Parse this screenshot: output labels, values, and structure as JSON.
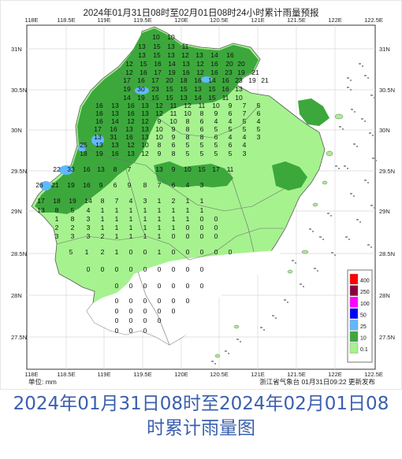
{
  "map": {
    "title": "2024年01月31日08时至02月01日08时24小时累计雨量预报",
    "unit_label": "单位:  mm",
    "issuer": "浙江省气象台  01月31日09:22  更新发布",
    "lon_ticks": [
      "118E",
      "118.5E",
      "119E",
      "119.5E",
      "120E",
      "120.5E",
      "121E",
      "121.5E",
      "122E",
      "122.5E"
    ],
    "lat_ticks": [
      "31N",
      "30.5N",
      "30N",
      "29.5N",
      "29N",
      "28.5N",
      "28N",
      "27.5N"
    ],
    "legend": {
      "levels": [
        "400",
        "250",
        "100",
        "50",
        "25",
        "10",
        "0.1"
      ],
      "colors": [
        "#ff0000",
        "#8b0040",
        "#ff00ff",
        "#0000ff",
        "#61b8ff",
        "#3ca83c",
        "#a6f28f"
      ]
    },
    "rain_colors": {
      "light": "#a6f28f",
      "moderate": "#3ca83c",
      "heavy": "#61b8ff",
      "none": "#ffffff"
    },
    "values": [
      "10",
      "10",
      "13",
      "15",
      "13",
      "11",
      "13",
      "15",
      "13",
      "12",
      "13",
      "14",
      "16",
      "12",
      "15",
      "16",
      "14",
      "13",
      "12",
      "16",
      "20",
      "20",
      "12",
      "16",
      "17",
      "19",
      "16",
      "12",
      "16",
      "23",
      "19",
      "21",
      "17",
      "16",
      "17",
      "20",
      "18",
      "16",
      "14",
      "16",
      "23",
      "19",
      "21",
      "19",
      "30",
      "23",
      "15",
      "15",
      "13",
      "15",
      "16",
      "13",
      "14",
      "19",
      "15",
      "15",
      "13",
      "14",
      "15",
      "11",
      "10",
      "16",
      "13",
      "16",
      "13",
      "12",
      "11",
      "12",
      "11",
      "10",
      "9",
      "7",
      "5",
      "16",
      "13",
      "16",
      "13",
      "12",
      "11",
      "10",
      "8",
      "9",
      "6",
      "7",
      "6",
      "16",
      "14",
      "12",
      "12",
      "9",
      "10",
      "8",
      "6",
      "4",
      "4",
      "5",
      "4",
      "13",
      "31",
      "16",
      "13",
      "10",
      "9",
      "8",
      "8",
      "6",
      "4",
      "4",
      "3",
      "17",
      "16",
      "13",
      "13",
      "10",
      "9",
      "8",
      "6",
      "5",
      "5",
      "5",
      "5",
      "25",
      "13",
      "13",
      "12",
      "10",
      "8",
      "6",
      "5",
      "5",
      "5",
      "6",
      "4",
      "18",
      "19",
      "16",
      "13",
      "12",
      "9",
      "8",
      "5",
      "5",
      "5",
      "5",
      "3",
      "22",
      "33",
      "16",
      "13",
      "8",
      "7",
      "13",
      "9",
      "10",
      "15",
      "17",
      "11",
      "26",
      "21",
      "19",
      "16",
      "9",
      "6",
      "9",
      "8",
      "7",
      "6",
      "4",
      "3",
      "17",
      "18",
      "19",
      "14",
      "8",
      "7",
      "4",
      "3",
      "1",
      "2",
      "1",
      "1",
      "13",
      "8",
      "5",
      "4",
      "1",
      "1",
      "1",
      "1",
      "1",
      "1",
      "1",
      "1",
      "1",
      "8",
      "3",
      "1",
      "1",
      "1",
      "1",
      "1",
      "1",
      "1",
      "0",
      "0",
      "2",
      "2",
      "3",
      "1",
      "1",
      "1",
      "1",
      "1",
      "1",
      "0",
      "0",
      "0",
      "3",
      "3",
      "3",
      "2",
      "1",
      "1",
      "1",
      "1",
      "0",
      "0",
      "0",
      "0",
      "5",
      "1",
      "2",
      "1",
      "0",
      "0",
      "1",
      "0",
      "0",
      "0",
      "0",
      "0",
      "0",
      "0",
      "0",
      "0",
      "0",
      "0",
      "0",
      "0",
      "0",
      "0",
      "0",
      "0",
      "0",
      "0",
      "0",
      "0",
      "0",
      "0",
      "0",
      "0",
      "0",
      "0",
      "0",
      "0",
      "0",
      "0",
      "0",
      "0",
      "0",
      "0",
      "0",
      "0",
      "0",
      "0"
    ]
  },
  "caption": {
    "line1": "2024年01月31日08时至2024年02月01日08",
    "line2": "时累计雨量图"
  }
}
